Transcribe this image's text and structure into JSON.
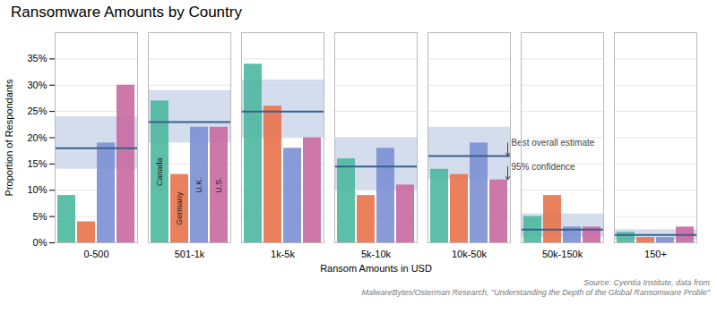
{
  "chart_data": {
    "type": "bar",
    "title": "Ransomware Amounts by Country",
    "xlabel": "Ransom Amounts in USD",
    "ylabel": "Proportion of Respondants",
    "categories": [
      "0-500",
      "501-1k",
      "1k-5k",
      "5k-10k",
      "10k-50k",
      "50k-150k",
      "150+"
    ],
    "series": [
      {
        "name": "Canada",
        "color": "#4db89e",
        "values": [
          9,
          27,
          34,
          16,
          14,
          5,
          2
        ]
      },
      {
        "name": "Germany",
        "color": "#e8724a",
        "values": [
          4,
          13,
          26,
          9,
          13,
          9,
          1
        ]
      },
      {
        "name": "U.K.",
        "color": "#7b8fd4",
        "values": [
          19,
          22,
          18,
          18,
          19,
          3,
          1
        ]
      },
      {
        "name": "U.S.",
        "color": "#c969a1",
        "values": [
          30,
          22,
          20,
          11,
          12,
          3,
          3
        ]
      }
    ],
    "best_estimate": [
      18,
      23,
      25,
      14.5,
      16.5,
      2.5,
      1.5
    ],
    "ci_lower": [
      14,
      19,
      20,
      10,
      12,
      1,
      0.5
    ],
    "ci_upper": [
      24,
      29,
      31,
      20,
      22,
      5.5,
      2.5
    ],
    "ylim": [
      0,
      40
    ],
    "yticks": [
      {
        "value": 0,
        "label": "0%"
      },
      {
        "value": 5,
        "label": "5%"
      },
      {
        "value": 10,
        "label": "10%"
      },
      {
        "value": 15,
        "label": "15%"
      },
      {
        "value": 20,
        "label": "20%"
      },
      {
        "value": 25,
        "label": "25%"
      },
      {
        "value": 30,
        "label": "30%"
      },
      {
        "value": 35,
        "label": "35%"
      }
    ],
    "grid": true,
    "annotations": [
      {
        "text": "Best overall estimate",
        "category": "10k-50k",
        "y": 16.5
      },
      {
        "text": "95% confidence",
        "category": "10k-50k",
        "y": 12
      }
    ],
    "source": "Source: Cyentia Institute, data from\nMalwareBytes/Osterman Research, \"Understanding the Depth of the Global Ransomware Proble\""
  }
}
